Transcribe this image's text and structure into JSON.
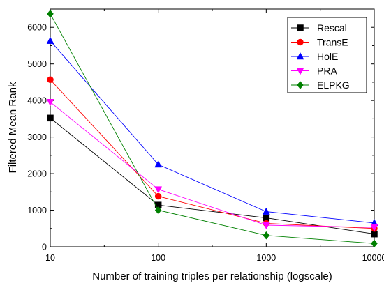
{
  "chart_data": {
    "type": "line",
    "x": [
      10,
      100,
      1000,
      10000
    ],
    "x_tick_labels": [
      "10",
      "100",
      "1000",
      "10000"
    ],
    "xscale": "log",
    "xlim": [
      10,
      10000
    ],
    "xlabel": "Number of training triples per relationship (logscale)",
    "ylabel": "Filtered Mean Rank",
    "ylim": [
      0,
      6500
    ],
    "y_ticks": [
      0,
      1000,
      2000,
      3000,
      4000,
      5000,
      6000
    ],
    "y_tick_labels": [
      "0",
      "1000",
      "2000",
      "3000",
      "4000",
      "5000",
      "6000"
    ],
    "grid": false,
    "legend_position": "top-right",
    "series": [
      {
        "name": "Rescal",
        "color": "#000000",
        "marker": "square",
        "values": [
          3520,
          1140,
          790,
          350
        ]
      },
      {
        "name": "TransE",
        "color": "#ff0000",
        "marker": "circle",
        "values": [
          4570,
          1380,
          640,
          500
        ]
      },
      {
        "name": "HolE",
        "color": "#0000ff",
        "marker": "triangle-up",
        "values": [
          5630,
          2250,
          960,
          650
        ]
      },
      {
        "name": "PRA",
        "color": "#ff00ff",
        "marker": "triangle-down",
        "values": [
          3960,
          1570,
          590,
          530
        ]
      },
      {
        "name": "ELPKG",
        "color": "#008000",
        "marker": "diamond",
        "values": [
          6370,
          1000,
          310,
          90
        ]
      }
    ]
  }
}
